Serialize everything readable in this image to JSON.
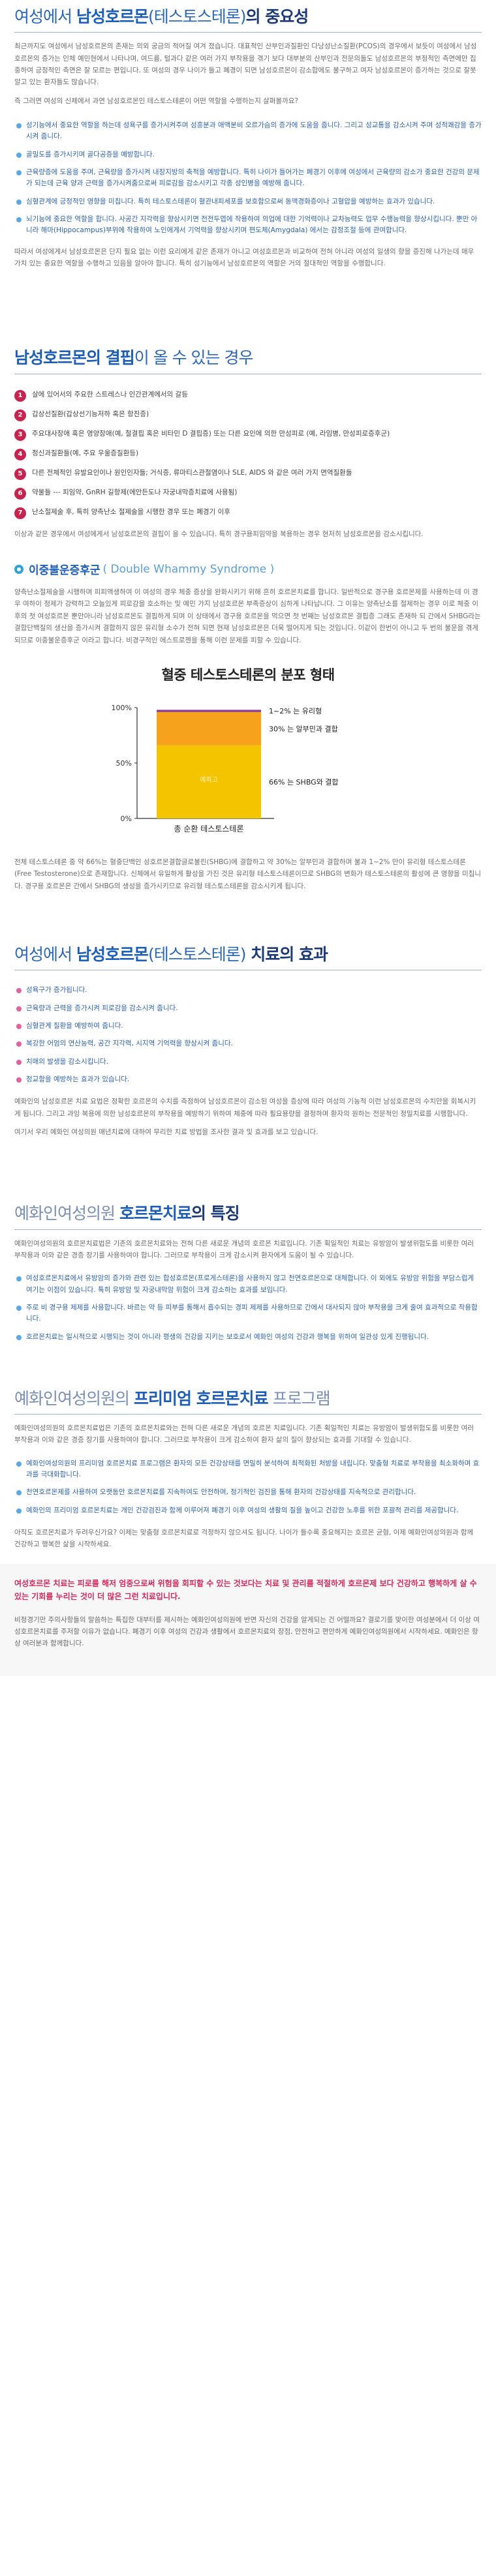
{
  "s1": {
    "title_prefix": "여성에서 ",
    "title_highlight": "남성호르몬",
    "title_paren": "(테스토스테론)",
    "title_suffix": "의 중요성",
    "p1": "최근까지도 여성에서 남성호르몬의 존재는 의외 궁금의 적어질 여겨 졌습니다. 대표적인 산부인과질환인 다낭성난소질환(PCOS)의 경우에서 보듯이 여성에서 남성호르몬의 증가는 인체 예민현에서 나타나며, 여드름, 털과다 같은 여러 가지 부작용을 겪기 보다 대부분의 산부인과 전문의들도 남성호르몬의 부정적인 측면에만 집중하여 긍정적인 측면은 잘 모르는 편입니다. 또 여성의 경우 나이가 들고 폐경이 되면 남성호르몬이 감소합에도 불구하고 여자 남성호르몬이 증가하는 것으로 잘못 알고 있는 환자들도 많습니다.",
    "p2": "즉 그러면 여성의 신체에서 과연 남성호르몬인 테스토스테론이 어떤 역할을 수행하는지 살펴볼까요?",
    "bullets": [
      "성기능에서 중요한 역할을 하는데 성욕구를 증가시켜주며 성흥분과 애액분비 오르가슴의 증가에 도움을 줍니다. 그리고 성교통을 감소시켜 주며 성적쾌감을 증가시켜 줍니다.",
      "골밀도를 증가시키며 골다공증을 예방합니다.",
      "근육량증에 도움을 주며, 근육량을 증가시켜 내장지방의 축적을 예방합니다. 특히 나이가 들어가는 폐경기 이후에 여성에서 근육량의 감소가 중요한 건강의 문제가 되는데 근육 양과 근력을 증가시켜줌으로써 피로감을 감소시키고 각종 성인병을 예방해 줍니다.",
      "심혈관계에 긍정적인 영향을 미칩니다. 특히 테스토스테론이 혈관내피세포를 보호함으로써 동맥경화증이나 고혈압을 예방하는 효과가 있습니다.",
      "뇌기능에 중요한 역할을 합니다. 사공간 지각력을 향상시키면 전전두엽에 작용하여 의업에 대한 기억력이나 교차능력도 업무 수행능력을 향상시킵니다. 뿐만 아니라 해마(Hippocampus)부위에 작용하여 노인에게서 기억력을 향상시키며 편도체(Amygdala) 에서는 감정조절 등에 관여합니다."
    ],
    "p3": "따라서 여성에게서 남성호르몬은 단지 필요 없는 이런 요리에게 같은 존재가 아니고 여성호르몬과 비교하여 전혀 아니라 여성의 일생의 향을 증진해 나가는데 매우 가치 있는 중요한 역할을 수행하고 있음을 알아야 합니다. 특히 성기능에서 남성호르몬의 역할은 거의 절대적인 역할을 수행합니다."
  },
  "s2": {
    "title_highlight": "남성호르몬의 결핍",
    "title_suffix": "이 올 수 있는 경우",
    "items": [
      "살에 있어서의 주요한 스트레스나 인간관계에서의 갈등",
      "갑상선질환(갑상선기능저하 혹은 항진증)",
      "주요대사장애 혹은 영양장애(예, 철결핍 혹은 비타민 D 결핍증) 또는 다른 요인에 의한 만성피로 (예, 라임병, 만성피로증후군)",
      "정신과질환들(예, 주요 우울증질환등)",
      "다른 전체적인 유발요인이나 원인인자들; 거식증, 류마티스관절염이나 SLE, AIDS 와 같은 여러 가지 면역질환들",
      "약물들 --- 피임약, GnRH 길항제(에안든도나 자궁내막증치료에 사용됨)",
      "난소절제술 후, 특히 양측난소 절제술을 시행한 경우 또는 폐경기 이후"
    ],
    "p1": "이상과 같은 경우에서 여성에게서 남성호르몬의 결핍이 올 수 있습니다. 특히 경구용피임약을 복용하는 경우 현저히 남성호르몬을 감소시킵니다."
  },
  "s3": {
    "heading_kr": "이중불운증후군",
    "heading_en": "( Double Whammy Syndrome )",
    "p1": "양측난소절제술을 시행하며 피피액생하여 이 여성의 경우 체중 증상을 완화시키기 위해 흔히 호르몬치료를 합니다. 일반적으로 경구용 호르몬제를 사용하는데 이 경우 여하이 정제가 강력하고 오늘있게 피로감을 호소하는 및 예민 가지 남성호르몬 부족증상이 심하게 나타납니다. 그 이유는 양측난소를 절제하는 경우 이로 체중 이후의 첫 여성호르몬 뿐만아니라 남성호르몬도 결핍하게 되며 이 상태에서 경구용 호르몬을 먹으면 첫 번째는 남성호르몬 결핍증 그래도 존재하 되 간에서 SHBG라는 결합단백질의 생산을 증가시켜 결합하지 않은 유리형 소수가 전혀 되면 현재 남성호르몬은 더욱 떨어지게 되는 것입니다. 이같이 한번이 아니고 두 번의 불운을 겪게 되므로 이중불운증후군 이라고 합니다. 비경구적인 에스트로젠을 통해 이런 문제를 피할 수 있습니다.",
    "chart_title": "혈중 테스토스테론의 분포 형태",
    "p2": "전체 테스토스테론 중 약 66%는 혈중단백인 성호르몬결합글로불린(SHBG)에 결합하고 약 30%는 알부민과 결합하며 불과 1~2% 만이 유리형 테스토스테론(Free Testosterone)으로 존재합니다. 신체에서 유일하게 활성을 가진 것은 유리형 테스토스테론이므로 SHBG의 변화가 테스토스테론의 활성에 큰 영향을 미칩니다. 경구용 호르몬은 간에서 SHBG의 생성을 증가시키므로 유리형 테스토스테론을 감소시키게 됩니다."
  },
  "chart_data": {
    "type": "bar",
    "stacked": true,
    "title": "혈중 테스토스테론의 분포 형태",
    "categories": [
      "총 순환 테스토스테론"
    ],
    "series": [
      {
        "name": "66% 는 SHBG와 결합",
        "values": [
          66
        ],
        "color": "#f5c400"
      },
      {
        "name": "30% 는 알부민과 결합",
        "values": [
          30
        ],
        "color": "#f6a21d"
      },
      {
        "name": "1~2% 는 유리형",
        "values": [
          2
        ],
        "color": "#8c3e91"
      }
    ],
    "inner_label": "예최고",
    "yticks": [
      "100%",
      "50%",
      "0%"
    ],
    "ylim": [
      0,
      100
    ]
  },
  "s4": {
    "title_prefix": "여성에서 ",
    "title_highlight": "남성호르몬",
    "title_paren": "(테스토스테론)",
    "title_suffix": " 치료의 효과",
    "bullets": [
      "성욕구가 증가됩니다.",
      "근육량과 근력을 증가시켜 피로감을 감소시켜 줍니다.",
      "심혈관계 질환을 예방하여 줍니다.",
      "복강한 어엄의 연산능력, 공간 지각력, 시지역 기억력을 향상시켜 줍니다.",
      "치매의 발생을 감소시킵니다.",
      "정교함을 예방하는 효과가 있습니다."
    ],
    "p1": "예화인의 남성호르몬 치료 요법은 정확한 호르몬의 수치를 측정하여 남성호르몬이 감소된 여성을 증상에 따라 여성의 기능적 이런 남성호르몬의 수치만을 회복시키게 됩니다. 그리고 과잉 복용에 의한 남성호르몬의 부작용을 예방하기 위하여 체중에 따라 필요용량을 결정하며 환자의 원하는 전문적인 정밀치료를 시행합니다.",
    "p2": "여기서 우리 예화인 여성의원 매년치료에 대하여 무리한 치료 방법을 조사한 결과 및 효과를 보고 있습니다."
  },
  "s5": {
    "title_muted": "예화인여성의원 ",
    "title_highlight": "호르몬치료",
    "title_suffix": "의 특징",
    "p1": "예화인여성의원의 호르몬치료법은 기존의 호르몬치료와는 전혀 다른 새로운 개념의 호르몬 치료입니다. 기존 획일적인 치료는 유방암이 발생위험도를 비롯한 여러 부작용과 이와 같은 경증 장기를 사용하여야 합니다. 그러므로 부작용이 크게 감소시켜 환자에게 도움이 될 수 있습니다.",
    "bullets": [
      "여성호르몬치료에서 유방암의 증가와 관련 있는 합성호르몬(프로게스테론)을 사용하지 않고 천연호르몬으로 대체합니다. 이 외에도 유방암 위험을 부담스럽게 여기는 이점이 있습니다. 특히 유방암 및 자궁내막암 위험이 크게 감소하는 효과를 보입니다.",
      "주로 비 경구용 제제를 사용합니다. 바르는 약 등 피부를 통해서 흡수되는 경피 제제를 사용하므로 간에서 대사되지 않아 부작용을 크게 줄여 효과적으로 작용합니다.",
      "호르몬치료는 일시적으로 시행되는 것이 아니라 평생의 건강을 지키는 보호로서 예화인 여성의 건강과 행복을 위하여 일관성 있게 진행됩니다."
    ]
  },
  "s6": {
    "title_muted": "예화인여성의원의 ",
    "title_highlight": "프리미엄 호르몬치료",
    "title_suffix": " 프로그램",
    "p1": "예화인여성의원의 호르몬치료법은 기존의 호르몬치료와는 전혀 다른 새로운 개념의 호르몬 치료입니다. 기존 획일적인 치료는 유방암이 발생위험도를 비롯한 여러 부작용과 이와 같은 경증 장기를 사용하여야 합니다. 그러므로 부작용이 크게 감소하여 환자 삶의 질이 향상되는 효과를 기대할 수 있습니다.",
    "bullets": [
      "예화인여성의원의 프리미엄 호르몬치료 프로그램은 환자의 모든 건강상태를 면밀히 분석하여 최적화된 처방을 내립니다. 맞춤형 치료로 부작용을 최소화하며 효과를 극대화합니다.",
      "천연호르몬제를 사용하여 오랫동안 호르몬치료를 지속하여도 안전하며, 정기적인 검진을 통해 환자의 건강상태를 지속적으로 관리합니다.",
      "예화인의 프리미엄 호르몬치료는 개인 건강검진과 함께 이루어져 폐경기 이후 여성의 생활의 질을 높이고 건강한 노후를 위한 포괄적 관리를 제공합니다."
    ],
    "p2": "아직도 호르몬치료가 두려우신가요? 이제는 맞춤형 호르몬치료로 걱정하지 않으셔도 됩니다. 나이가 들수록 중요해지는 호르몬 균형, 이제 예화인여성의원과 함께 건강하고 행복한 삶을 시작하세요.",
    "lead": "여성호르몬 치료는 피로를 해저 엄중으로써 위험을 회피할 수 있는 것보다는 치료 및 관리를 적절하게 호르몬제 보다 건강하고 행복하게 살 수 있는 기회를 누리는 것이 더 많은 그런 치료입니다.",
    "p3": "비정경기만 주의사항들의 말씀하는 특집한 대부터를 제시하는 예화인여성의원에 반면 자신의 건강을 알게되는 건 어떨까요? 결로기를 맞이한 여성분에서 더 이상 여성호르몬치료를 주저할 이유가 없습니다. 폐경기 이후 여성의 건강과 생활에서 호르몬치료의 장점, 안전하고 편안하게 예화인여성의원에서 시작하세요. 예화인은 항상 여러분과 함께합니다."
  }
}
